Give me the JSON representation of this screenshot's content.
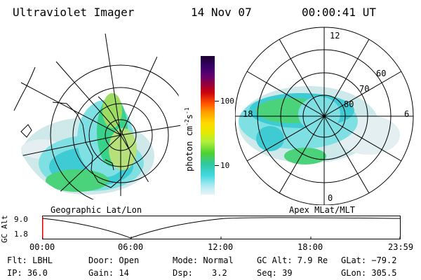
{
  "header": {
    "title": "Ultraviolet Imager",
    "date": "14 Nov 07",
    "time": "00:00:41 UT"
  },
  "left_map": {
    "label": "Geographic Lat/Lon"
  },
  "right_map": {
    "label": "Apex MLat/MLT",
    "mlt_labels": {
      "top": "12",
      "left": "18",
      "right": "6",
      "bottom": "0"
    },
    "lat_labels": [
      "60",
      "70",
      "80"
    ]
  },
  "colorbar": {
    "unit_label": "photon cm",
    "unit_exp1": "-2",
    "unit_s": "s",
    "unit_exp2": "-1",
    "ticks": [
      "100",
      "10"
    ]
  },
  "timeline": {
    "y_axis_label": "GC Alt",
    "y_ticks": [
      "9.0",
      "1.8"
    ],
    "x_ticks": [
      "00:00",
      "06:00",
      "12:00",
      "18:00",
      "23:59"
    ]
  },
  "info": {
    "flt": "Flt: LBHL",
    "door": "Door: Open",
    "mode": "Mode: Normal",
    "gc_alt": "GC Alt: 7.9 Re",
    "glat": "GLat: −79.2",
    "ip": "IP: 36.0",
    "gain": "Gain: 14",
    "dsp_label": "Dsp:",
    "dsp_value": "3.2",
    "seq": "Seq: 39",
    "glon": "GLon: 305.5"
  }
}
